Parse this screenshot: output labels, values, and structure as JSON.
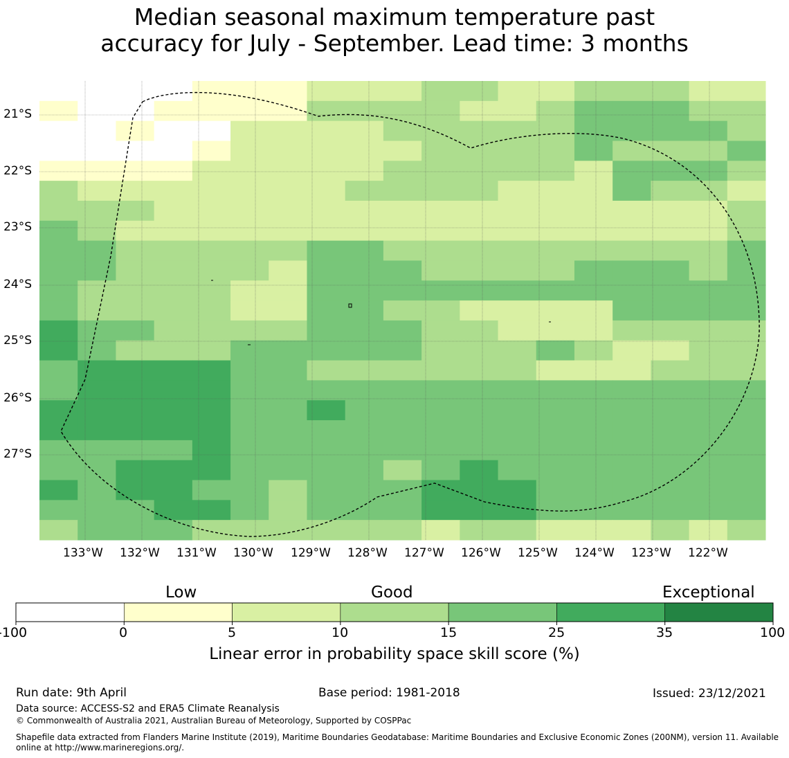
{
  "title_line1": "Median seasonal maximum temperature past",
  "title_line2": "accuracy for July - September. Lead time: 3 months",
  "map": {
    "lon_labels": [
      "133°W",
      "132°W",
      "131°W",
      "130°W",
      "129°W",
      "128°W",
      "127°W",
      "126°W",
      "125°W",
      "124°W",
      "123°W",
      "122°W"
    ],
    "lat_labels": [
      "21°S",
      "22°S",
      "23°S",
      "24°S",
      "25°S",
      "26°S",
      "27°S"
    ],
    "grid_rows": [
      "0000111222332233322",
      "1001111333322344433",
      "0010022223333344443",
      "0000122222333343334",
      "1111222223333324443",
      "3222222233332224332",
      "3332222222222222223",
      "4322222222222222223",
      "4433333443333333334",
      "4433332444333344434",
      "4333322444444444444",
      "4333322443322224444",
      "5443333444332223333",
      "5433344444333432233",
      "4555544333333222333",
      "4555544444444444444",
      "5555544544444444444",
      "5555544444444444444",
      "4444544444444444444",
      "4455544443454444444",
      "5455443444555444444",
      "4445543444555444444",
      "3444333333233222323"
    ]
  },
  "legend": {
    "category_labels": [
      "Low",
      "Good",
      "Exceptional"
    ],
    "tick_labels": [
      "-100",
      "0",
      "5",
      "10",
      "15",
      "25",
      "35",
      "100"
    ],
    "colors": [
      "#ffffff",
      "#ffffcc",
      "#d9f0a3",
      "#addd8e",
      "#78c679",
      "#41ab5d",
      "#238443"
    ],
    "title": "Linear error in probability space skill score (%)"
  },
  "footer": {
    "run_date": "Run date: 9th April",
    "base_period": "Base period: 1981-2018",
    "issued": "Issued: 23/12/2021",
    "data_source": "Data source: ACCESS-S2 and ERA5 Climate Reanalysis",
    "copyright": "© Commonwealth of Australia 2021, Australian Bureau of Meteorology, Supported by COSPPac",
    "shapefile_line1": "Shapefile data extracted from Flanders Marine Institute (2019), Maritime Boundaries Geodatabase: Maritime Boundaries and Exclusive Economic Zones (200NM), version 11. Available",
    "shapefile_line2": "online at http://www.marineregions.org/."
  }
}
